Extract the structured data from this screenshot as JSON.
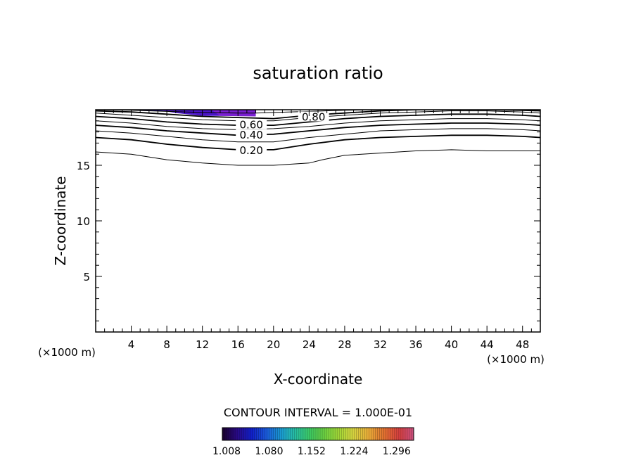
{
  "chart_data": {
    "type": "contour",
    "title": "saturation ratio",
    "xlabel": "X-coordinate",
    "ylabel": "Z-coordinate",
    "x_unit": "(×1000 m)",
    "xlim": [
      0,
      50
    ],
    "ylim": [
      0,
      20
    ],
    "x_ticks": [
      4,
      8,
      12,
      16,
      20,
      24,
      28,
      32,
      36,
      40,
      44,
      48
    ],
    "y_ticks": [
      5,
      10,
      15
    ],
    "contour_interval_text": "CONTOUR INTERVAL = 1.000E-01",
    "contours": [
      {
        "level": 0.1,
        "label": "",
        "points": [
          [
            0,
            16.2
          ],
          [
            4,
            16.0
          ],
          [
            8,
            15.5
          ],
          [
            12,
            15.2
          ],
          [
            16,
            15.0
          ],
          [
            20,
            15.0
          ],
          [
            24,
            15.2
          ],
          [
            25.5,
            15.5
          ],
          [
            28,
            15.9
          ],
          [
            32,
            16.1
          ],
          [
            36,
            16.3
          ],
          [
            40,
            16.4
          ],
          [
            44,
            16.3
          ],
          [
            48,
            16.3
          ],
          [
            50,
            16.3
          ]
        ]
      },
      {
        "level": 0.2,
        "label": "0.20",
        "points": [
          [
            0,
            17.5
          ],
          [
            4,
            17.3
          ],
          [
            8,
            16.9
          ],
          [
            12,
            16.6
          ],
          [
            16,
            16.4
          ],
          [
            20,
            16.4
          ],
          [
            24,
            16.9
          ],
          [
            28,
            17.3
          ],
          [
            32,
            17.5
          ],
          [
            36,
            17.6
          ],
          [
            40,
            17.7
          ],
          [
            44,
            17.7
          ],
          [
            48,
            17.6
          ],
          [
            50,
            17.5
          ]
        ]
      },
      {
        "level": 0.3,
        "label": "",
        "points": [
          [
            0,
            18.1
          ],
          [
            4,
            17.9
          ],
          [
            8,
            17.6
          ],
          [
            12,
            17.3
          ],
          [
            16,
            17.1
          ],
          [
            20,
            17.1
          ],
          [
            24,
            17.5
          ],
          [
            28,
            17.8
          ],
          [
            32,
            18.1
          ],
          [
            36,
            18.2
          ],
          [
            40,
            18.3
          ],
          [
            44,
            18.3
          ],
          [
            48,
            18.2
          ],
          [
            50,
            18.1
          ]
        ]
      },
      {
        "level": 0.4,
        "label": "0.40",
        "points": [
          [
            0,
            18.6
          ],
          [
            4,
            18.4
          ],
          [
            8,
            18.1
          ],
          [
            12,
            17.9
          ],
          [
            16,
            17.7
          ],
          [
            20,
            17.8
          ],
          [
            24,
            18.1
          ],
          [
            28,
            18.4
          ],
          [
            32,
            18.6
          ],
          [
            36,
            18.7
          ],
          [
            40,
            18.8
          ],
          [
            44,
            18.8
          ],
          [
            48,
            18.7
          ],
          [
            50,
            18.6
          ]
        ]
      },
      {
        "level": 0.5,
        "label": "",
        "points": [
          [
            0,
            19.0
          ],
          [
            4,
            18.8
          ],
          [
            8,
            18.5
          ],
          [
            12,
            18.3
          ],
          [
            16,
            18.2
          ],
          [
            20,
            18.3
          ],
          [
            24,
            18.5
          ],
          [
            28,
            18.8
          ],
          [
            32,
            19.0
          ],
          [
            36,
            19.1
          ],
          [
            40,
            19.2
          ],
          [
            44,
            19.2
          ],
          [
            48,
            19.1
          ],
          [
            50,
            19.0
          ]
        ]
      },
      {
        "level": 0.6,
        "label": "0.60",
        "points": [
          [
            0,
            19.4
          ],
          [
            4,
            19.2
          ],
          [
            8,
            18.9
          ],
          [
            12,
            18.7
          ],
          [
            16,
            18.6
          ],
          [
            20,
            18.6
          ],
          [
            24,
            18.9
          ],
          [
            28,
            19.2
          ],
          [
            32,
            19.4
          ],
          [
            36,
            19.5
          ],
          [
            40,
            19.6
          ],
          [
            44,
            19.6
          ],
          [
            48,
            19.5
          ],
          [
            50,
            19.4
          ]
        ]
      },
      {
        "level": 0.7,
        "label": "",
        "points": [
          [
            0,
            19.7
          ],
          [
            4,
            19.5
          ],
          [
            8,
            19.3
          ],
          [
            12,
            19.1
          ],
          [
            16,
            19.0
          ],
          [
            20,
            19.0
          ],
          [
            24,
            19.3
          ],
          [
            28,
            19.5
          ],
          [
            32,
            19.7
          ],
          [
            36,
            19.8
          ],
          [
            40,
            19.9
          ],
          [
            44,
            19.9
          ],
          [
            48,
            19.8
          ],
          [
            50,
            19.7
          ]
        ]
      },
      {
        "level": 0.8,
        "label": "0.80",
        "points": [
          [
            0,
            19.9
          ],
          [
            4,
            19.8
          ],
          [
            8,
            19.6
          ],
          [
            12,
            19.4
          ],
          [
            16,
            19.3
          ],
          [
            20,
            19.2
          ],
          [
            24,
            19.5
          ],
          [
            28,
            19.7
          ],
          [
            32,
            19.9
          ],
          [
            36,
            20.0
          ],
          [
            40,
            20.0
          ],
          [
            44,
            20.0
          ],
          [
            48,
            19.95
          ],
          [
            50,
            19.9
          ]
        ]
      },
      {
        "level": 0.9,
        "label": "",
        "points": [
          [
            0,
            20.0
          ],
          [
            4,
            19.95
          ],
          [
            8,
            19.85
          ],
          [
            12,
            19.75
          ],
          [
            16,
            19.7
          ],
          [
            18,
            19.7
          ],
          [
            20,
            19.75
          ],
          [
            24,
            19.85
          ],
          [
            28,
            19.95
          ],
          [
            32,
            20.0
          ],
          [
            50,
            20.0
          ]
        ]
      }
    ],
    "filled_regions": [
      {
        "value": 1.008,
        "color": "#1a0fa0",
        "points": [
          [
            4,
            20
          ],
          [
            18,
            20
          ],
          [
            18,
            19.9
          ],
          [
            8,
            19.88
          ],
          [
            4,
            19.95
          ]
        ]
      },
      {
        "value": 1.035,
        "color": "#4a14c8",
        "points": [
          [
            7,
            20
          ],
          [
            18,
            20
          ],
          [
            18,
            19.45
          ],
          [
            12,
            19.45
          ],
          [
            9,
            19.7
          ]
        ]
      },
      {
        "value": 1.06,
        "color": "#7a1fd2",
        "points": [
          [
            13,
            20
          ],
          [
            18,
            20
          ],
          [
            18,
            19.4
          ],
          [
            14,
            19.45
          ]
        ]
      }
    ],
    "colorbar": {
      "ticks": [
        "1.008",
        "1.080",
        "1.152",
        "1.224",
        "1.296"
      ],
      "range": [
        1.008,
        1.332
      ],
      "colors": [
        "#18002a",
        "#2a0a88",
        "#1020c8",
        "#1a5ad8",
        "#1a9ad0",
        "#28c0a0",
        "#3ec860",
        "#6ed040",
        "#a8d838",
        "#d8d040",
        "#e8a838",
        "#e07030",
        "#d84040",
        "#c85080"
      ]
    }
  }
}
